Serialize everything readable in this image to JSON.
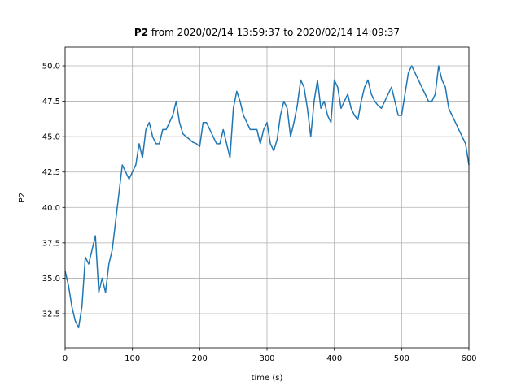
{
  "chart_data": {
    "type": "line",
    "title": {
      "bold": "P2",
      "text": "from 2020/02/14 13:59:37 to 2020/02/14 14:09:37"
    },
    "x_label": "time (s)",
    "y_label": "P2",
    "x": [
      0,
      5,
      10,
      15,
      20,
      25,
      30,
      35,
      40,
      45,
      50,
      55,
      60,
      65,
      70,
      75,
      80,
      85,
      90,
      95,
      100,
      105,
      110,
      115,
      120,
      125,
      130,
      135,
      140,
      145,
      150,
      155,
      160,
      165,
      170,
      175,
      180,
      185,
      190,
      195,
      200,
      205,
      210,
      215,
      220,
      225,
      230,
      235,
      240,
      245,
      250,
      255,
      260,
      265,
      270,
      275,
      280,
      285,
      290,
      295,
      300,
      305,
      310,
      315,
      320,
      325,
      330,
      335,
      340,
      345,
      350,
      355,
      360,
      365,
      370,
      375,
      380,
      385,
      390,
      395,
      400,
      405,
      410,
      415,
      420,
      425,
      430,
      435,
      440,
      445,
      450,
      455,
      460,
      465,
      470,
      475,
      480,
      485,
      490,
      495,
      500,
      505,
      510,
      515,
      520,
      525,
      530,
      535,
      540,
      545,
      550,
      555,
      560,
      565,
      570,
      575,
      580,
      585,
      590,
      595,
      600
    ],
    "series": [
      {
        "name": "P2",
        "color": "#1f77b4",
        "values": [
          35.5,
          34.5,
          33,
          32,
          31.5,
          33,
          36.5,
          36,
          37,
          38,
          34,
          35,
          34,
          36,
          37,
          39,
          41,
          43,
          42.5,
          42,
          42.5,
          43,
          44.5,
          43.5,
          45.5,
          46,
          45,
          44.5,
          44.5,
          45.5,
          45.5,
          46,
          46.5,
          47.5,
          46,
          45.2,
          45,
          44.8,
          44.6,
          44.5,
          44.3,
          46,
          46,
          45.5,
          45,
          44.5,
          44.5,
          45.5,
          44.5,
          43.5,
          47,
          48.2,
          47.5,
          46.5,
          46,
          45.5,
          45.5,
          45.5,
          44.5,
          45.5,
          46,
          44.5,
          44,
          44.8,
          46.5,
          47.5,
          47,
          45,
          46,
          47.2,
          49,
          48.5,
          47,
          45,
          47.5,
          49,
          47,
          47.5,
          46.5,
          46,
          49,
          48.5,
          47,
          47.5,
          48,
          47,
          46.5,
          46.2,
          47.5,
          48.5,
          49,
          48,
          47.5,
          47.2,
          47,
          47.5,
          48,
          48.5,
          47.5,
          46.5,
          46.5,
          48,
          49.5,
          50,
          49.5,
          49,
          48.5,
          48,
          47.5,
          47.5,
          48,
          50,
          49,
          48.5,
          47,
          46.5,
          46,
          45.5,
          45,
          44.5,
          43
        ]
      }
    ],
    "xlim": [
      0,
      600
    ],
    "xticks": [
      0,
      100,
      200,
      300,
      400,
      500,
      600
    ],
    "ylim": [
      30.09,
      51.32
    ],
    "yticks": [
      32.5,
      {
        "value": 35,
        "label": "35.0"
      },
      37.5,
      {
        "value": 40,
        "label": "40.0"
      },
      42.5,
      {
        "value": 45,
        "label": "45.0"
      },
      47.5,
      {
        "value": 50,
        "label": "50.0"
      }
    ],
    "grid": true
  }
}
